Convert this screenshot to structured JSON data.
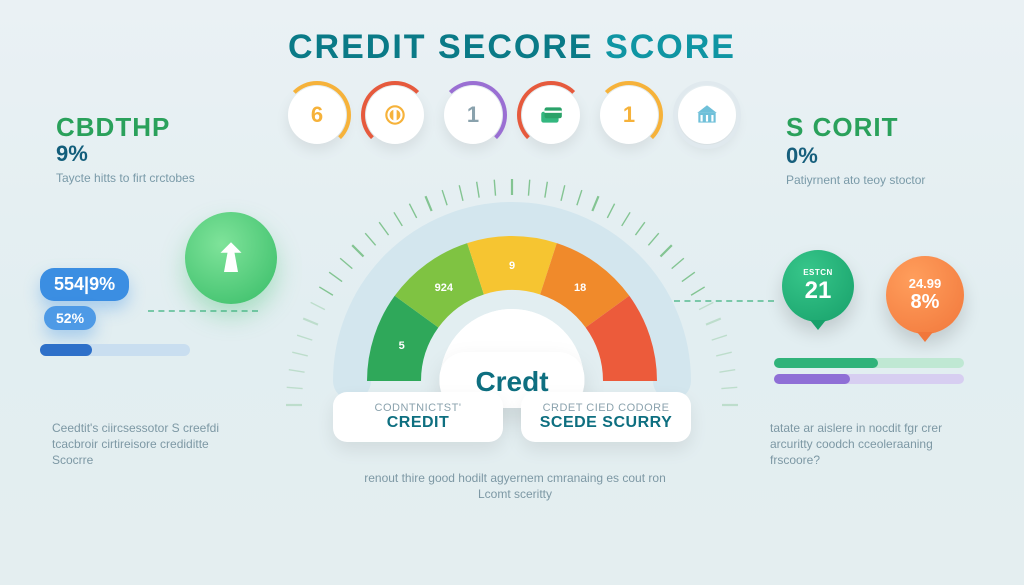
{
  "title": {
    "w1": "CREDIT",
    "w2": "SECORE",
    "w3": "SCORE",
    "color_primary": "#0a7a87",
    "color_secondary": "#0f95a3",
    "fontsize": 34
  },
  "background": {
    "top": "#eaf1f4",
    "bottom": "#e4eef0"
  },
  "left": {
    "heading1": "CBDTHP",
    "heading2": "9%",
    "heading1_color": "#2aa15b",
    "heading2_color": "#125e7b",
    "sub": "Taycte hitts to firt crctobes",
    "badge1": "554|9%",
    "badge2": "52%",
    "badge_bg": "#3b8ee2",
    "bar_color": "#2e70c9",
    "bar_bg": "#c9def0",
    "bar_fill_pct": 35,
    "marker_color": "#3ec06c",
    "paragraph": "Ceedtit's ciircsessotor S creefdi tcacbroir cirtireisore crediditte Scocrre"
  },
  "right": {
    "heading1": "S CORIT",
    "heading2": "0%",
    "heading1_color": "#2aa15b",
    "heading2_color": "#165f7c",
    "sub": "Patiyrnent ato teoy stoctor",
    "bubble_green": {
      "top": "ESTCN",
      "value": "21",
      "bg1": "#37c68a",
      "bg2": "#17a06a"
    },
    "bubble_orange": {
      "top": "24.99",
      "value": "8%",
      "bg1": "#ff9e5c",
      "bg2": "#f1773b"
    },
    "bar1": {
      "color": "#30b37a",
      "bg": "#bfe8d3",
      "fill_pct": 55
    },
    "bar2": {
      "color": "#8f6fd6",
      "bg": "#d7cef1",
      "fill_pct": 40
    },
    "paragraph": "tatate ar aislere in nocdit fgr crer arcuritty coodch cceoleraaning frscoore?"
  },
  "center": {
    "gauge": {
      "type": "gauge",
      "segments": [
        {
          "color": "#2fa85a",
          "label": "5"
        },
        {
          "color": "#7fc342",
          "label": "924"
        },
        {
          "color": "#f6c531",
          "label": "9"
        },
        {
          "color": "#f08a2b",
          "label": "18"
        },
        {
          "color": "#ec5b3b",
          "label": ""
        }
      ],
      "outer_color": "#d3e6ee",
      "tick_color": "#79c088",
      "label_fontsize": 11,
      "label_color": "#ffffff"
    },
    "center_label": "Credt",
    "center_label_color": "#0e6f80",
    "categories": [
      {
        "line1": "CODNTNICTST'",
        "line2": "CREDIT"
      },
      {
        "line1": "CRDET CIED CODORE",
        "line2": "SCEDE SCURRY"
      }
    ],
    "paragraph": "renout thire good hodilt agyernem cmranaing es cout ron Lcomt sceritty"
  },
  "icon_row": [
    {
      "ring_color": "#f6b23a",
      "inner_color": "#f6b23a",
      "type": "num",
      "value": "6"
    },
    {
      "ring_color": "#e65a3d",
      "inner_color": "#f6b23a",
      "type": "svg",
      "icon": "coin"
    },
    {
      "ring_color": "#9a6fd3",
      "inner_color": "#8aa2ad",
      "type": "num",
      "value": "1"
    },
    {
      "ring_color": "#e65a3d",
      "inner_color": "#33b77f",
      "type": "svg",
      "icon": "cards"
    },
    {
      "ring_color": "#f6b23a",
      "inner_color": "#f6b23a",
      "type": "num",
      "value": "1"
    },
    {
      "ring_color": "#e0e9ee",
      "inner_color": "#6fc0d9",
      "type": "svg",
      "icon": "bank"
    }
  ],
  "connectors": {
    "color": "#35b07a"
  }
}
